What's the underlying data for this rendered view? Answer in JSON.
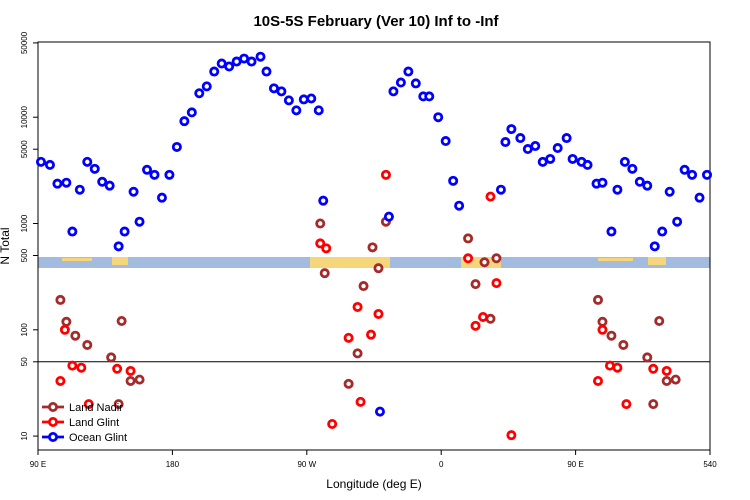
{
  "chart_data": {
    "type": "scatter",
    "title": "10S-5S February (Ver 10)   Inf to -Inf",
    "x_label": "Longitude (deg E)",
    "y_label": "N Total",
    "log_y": true,
    "legend": "bottom-left",
    "xlim": [
      90,
      540
    ],
    "xticks": [
      {
        "value": 90,
        "label": "90 E"
      },
      180,
      {
        "value": 270,
        "label": "90 W"
      },
      {
        "value": 360,
        "label": "0"
      },
      {
        "value": 450,
        "label": "90 E"
      },
      540
    ],
    "ylim": [
      7.4,
      51000
    ],
    "yticks": [
      10,
      50,
      100,
      500,
      1000,
      5000,
      10000,
      50000
    ],
    "hlines": [
      50
    ],
    "series": [
      {
        "name": "Land Nadir",
        "color": "#a52a2a",
        "x": [
          105,
          109,
          115,
          123,
          139,
          146,
          152,
          144,
          158,
          279,
          282,
          304,
          308,
          298,
          314,
          318,
          323,
          378,
          383,
          389,
          393,
          397,
          465,
          468,
          474,
          482,
          498,
          506,
          511,
          502,
          517
        ],
        "values": [
          191,
          119,
          88,
          72,
          55,
          121,
          33,
          20,
          34,
          1000,
          341,
          60,
          258,
          31,
          597,
          380,
          1040,
          724,
          269,
          432,
          127,
          471,
          191,
          119,
          88,
          72,
          55,
          121,
          33,
          20,
          34
        ]
      },
      {
        "name": "Land Glint",
        "color": "#ff0000",
        "x": [
          105,
          108,
          113,
          119,
          124,
          143,
          152,
          279,
          283,
          287,
          298,
          304,
          306,
          313,
          318,
          323,
          378,
          383,
          388,
          393,
          397,
          407,
          465,
          468,
          473,
          478,
          484,
          502,
          511
        ],
        "values": [
          33,
          100,
          46,
          44,
          20,
          43,
          41,
          650,
          584,
          13,
          84,
          164,
          21,
          90,
          141,
          2870,
          471,
          109,
          132,
          1790,
          275,
          10.2,
          33,
          100,
          46,
          44,
          20,
          43,
          41
        ]
      },
      {
        "name": "Ocean Glint",
        "color": "#0000ff",
        "x": [
          92,
          98,
          103,
          109,
          113,
          118,
          123,
          128,
          133,
          138,
          144,
          148,
          154,
          158,
          163,
          168,
          173,
          178,
          183,
          188,
          193,
          198,
          203,
          208,
          213,
          218,
          223,
          228,
          233,
          239,
          243,
          248,
          253,
          258,
          263,
          268,
          273,
          278,
          281,
          325,
          328,
          333,
          338,
          343,
          348,
          352,
          358,
          363,
          368,
          372,
          400,
          403,
          407,
          413,
          418,
          423,
          428,
          433,
          438,
          444,
          448,
          454,
          458,
          464,
          468,
          474,
          478,
          483,
          488,
          493,
          498,
          503,
          508,
          513,
          518,
          523,
          528,
          533,
          538,
          319
        ],
        "values": [
          3800,
          3560,
          2370,
          2420,
          840,
          2080,
          3800,
          3270,
          2470,
          2270,
          610,
          840,
          1990,
          1040,
          3200,
          2870,
          1750,
          2870,
          5250,
          9180,
          11100,
          16800,
          19500,
          26900,
          32000,
          30000,
          33400,
          35600,
          33400,
          37100,
          26900,
          18700,
          17500,
          14400,
          11600,
          14700,
          15000,
          11600,
          1640,
          1160,
          17500,
          21200,
          26900,
          20800,
          15700,
          15700,
          10000,
          5970,
          2520,
          1470,
          2080,
          5840,
          7730,
          6370,
          5020,
          5360,
          3800,
          4050,
          5130,
          6370,
          4050,
          3800,
          3560,
          2370,
          2420,
          840,
          2080,
          3800,
          3270,
          2470,
          2270,
          610,
          840,
          1990,
          1040,
          3200,
          2870,
          1750,
          2870,
          17
        ]
      }
    ]
  }
}
